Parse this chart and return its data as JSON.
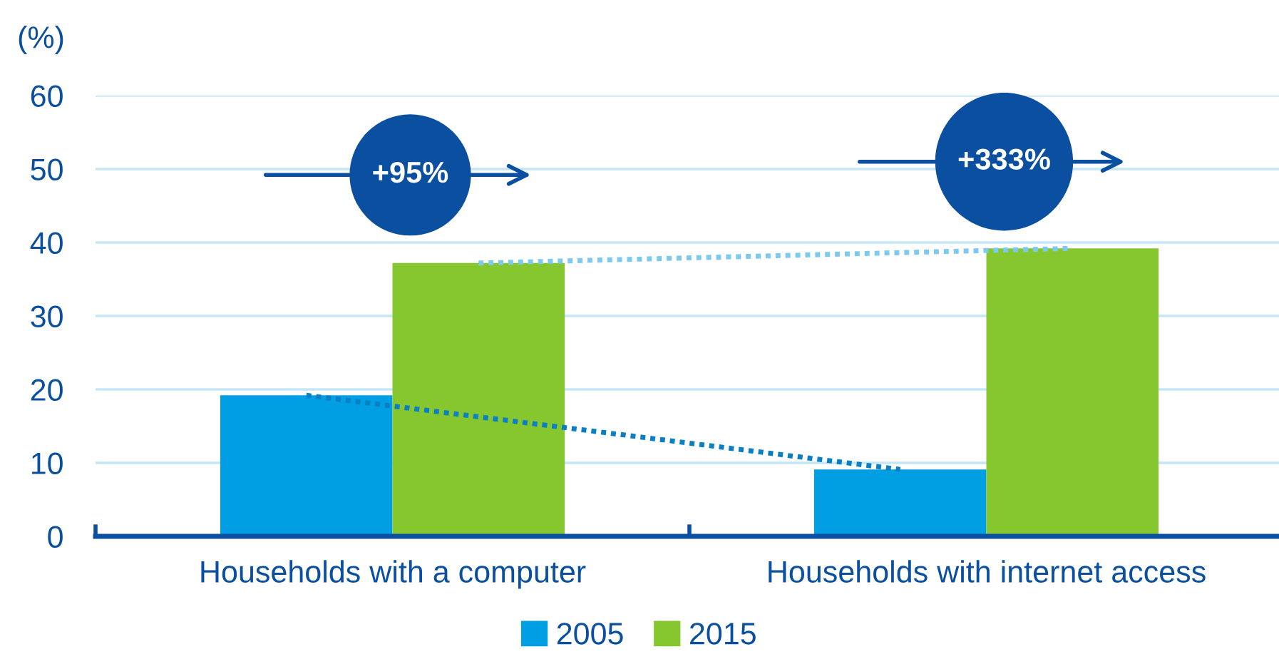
{
  "chart_data": {
    "type": "bar",
    "ylabel": "(%)",
    "categories": [
      "Households with a computer",
      "Households with internet access"
    ],
    "series": [
      {
        "name": "2005",
        "color": "#009fe3",
        "values": [
          19.2,
          9.1
        ]
      },
      {
        "name": "2015",
        "color": "#86c62e",
        "values": [
          37.2,
          39.2
        ]
      },
      {
        "type": "line",
        "color": "#0a7fc4",
        "line_style": "dotted",
        "values": [
          19.2,
          9.1
        ]
      },
      {
        "type": "line",
        "color": "#7ccbee",
        "line_style": "dotted",
        "values": [
          37.2,
          39.2
        ]
      }
    ],
    "ylim": [
      0,
      60
    ],
    "yticks": [
      0,
      10,
      20,
      30,
      40,
      50,
      60
    ],
    "grid": "y",
    "legend": "bottom",
    "annotations": [
      "+95%",
      "+333%"
    ]
  }
}
